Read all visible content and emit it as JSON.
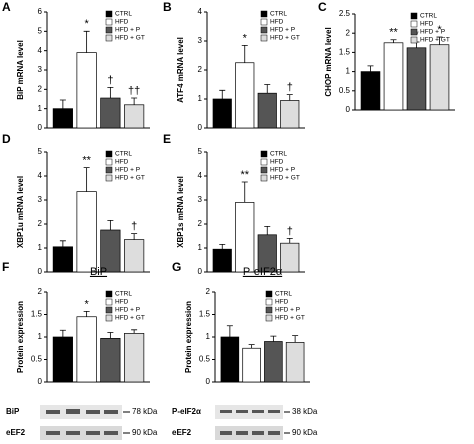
{
  "chart_data": [
    {
      "type": "bar",
      "label": "A",
      "y_label": "BiP mRNA level",
      "categories": [
        "CTRL",
        "HFD",
        "HFD + P",
        "HFD + GT"
      ],
      "colors": [
        "#000000",
        "#ffffff",
        "#555555",
        "#dddddd"
      ],
      "values": [
        1.0,
        3.9,
        1.55,
        1.2
      ],
      "errors": [
        0.45,
        1.1,
        0.55,
        0.35
      ],
      "markers": [
        null,
        "*",
        "†",
        "††"
      ],
      "ylim": [
        0,
        6
      ],
      "yticks": [
        0,
        1,
        2,
        3,
        4,
        5,
        6
      ]
    },
    {
      "type": "bar",
      "label": "B",
      "y_label": "ATF4 mRNA level",
      "categories": [
        "CTRL",
        "HFD",
        "HFD + P",
        "HFD + GT"
      ],
      "colors": [
        "#000000",
        "#ffffff",
        "#555555",
        "#dddddd"
      ],
      "values": [
        1.0,
        2.25,
        1.2,
        0.95
      ],
      "errors": [
        0.3,
        0.6,
        0.3,
        0.2
      ],
      "markers": [
        null,
        "*",
        null,
        "†"
      ],
      "ylim": [
        0,
        4
      ],
      "yticks": [
        0,
        1,
        2,
        3,
        4
      ]
    },
    {
      "type": "bar",
      "label": "C",
      "y_label": "CHOP mRNA level",
      "categories": [
        "CTRL",
        "HFD",
        "HFD + P",
        "HFD + GT"
      ],
      "colors": [
        "#000000",
        "#ffffff",
        "#555555",
        "#dddddd"
      ],
      "values": [
        1.0,
        1.75,
        1.62,
        1.7
      ],
      "errors": [
        0.15,
        0.08,
        0.15,
        0.2
      ],
      "markers": [
        null,
        "**",
        "*",
        "*"
      ],
      "ylim": [
        0,
        2.5
      ],
      "yticks": [
        0,
        0.5,
        1,
        1.5,
        2,
        2.5
      ]
    },
    {
      "type": "bar",
      "label": "D",
      "y_label": "XBP1u mRNA level",
      "categories": [
        "CTRL",
        "HFD",
        "HFD + P",
        "HFD + GT"
      ],
      "colors": [
        "#000000",
        "#ffffff",
        "#555555",
        "#dddddd"
      ],
      "values": [
        1.05,
        3.35,
        1.75,
        1.35
      ],
      "errors": [
        0.25,
        1.0,
        0.4,
        0.25
      ],
      "markers": [
        null,
        "**",
        null,
        "†"
      ],
      "ylim": [
        0,
        5
      ],
      "yticks": [
        0,
        1,
        2,
        3,
        4,
        5
      ]
    },
    {
      "type": "bar",
      "label": "E",
      "y_label": "XBP1s mRNA level",
      "categories": [
        "CTRL",
        "HFD",
        "HFD + P",
        "HFD + GT"
      ],
      "colors": [
        "#000000",
        "#ffffff",
        "#555555",
        "#dddddd"
      ],
      "values": [
        0.95,
        2.9,
        1.55,
        1.2
      ],
      "errors": [
        0.2,
        0.85,
        0.35,
        0.2
      ],
      "markers": [
        null,
        "**",
        null,
        "†"
      ],
      "ylim": [
        0,
        5
      ],
      "yticks": [
        0,
        1,
        2,
        3,
        4,
        5
      ]
    },
    {
      "type": "bar",
      "label": "F",
      "title": "BiP",
      "y_label": "Protein expression",
      "categories": [
        "CTRL",
        "HFD",
        "HFD + P",
        "HFD + GT"
      ],
      "colors": [
        "#000000",
        "#ffffff",
        "#555555",
        "#dddddd"
      ],
      "values": [
        1.0,
        1.45,
        0.97,
        1.08
      ],
      "errors": [
        0.15,
        0.12,
        0.13,
        0.08
      ],
      "markers": [
        null,
        "*",
        null,
        null
      ],
      "ylim": [
        0,
        2
      ],
      "yticks": [
        0,
        0.5,
        1,
        1.5,
        2
      ]
    },
    {
      "type": "bar",
      "label": "G",
      "title": "P-eIF2α",
      "y_label": "Protein expression",
      "categories": [
        "CTRL",
        "HFD",
        "HFD + P",
        "HFD + GT"
      ],
      "colors": [
        "#000000",
        "#ffffff",
        "#555555",
        "#dddddd"
      ],
      "values": [
        1.0,
        0.75,
        0.9,
        0.88
      ],
      "errors": [
        0.25,
        0.08,
        0.12,
        0.15
      ],
      "markers": [
        null,
        null,
        null,
        null
      ],
      "ylim": [
        0,
        2
      ],
      "yticks": [
        0,
        0.5,
        1,
        1.5,
        2
      ]
    }
  ],
  "blots": [
    {
      "protein": "BiP",
      "protein_kda": "78 kDa",
      "control": "eEF2",
      "control_kda": "90 kDa"
    },
    {
      "protein": "P-eIF2α",
      "protein_kda": "38 kDa",
      "control": "eEF2",
      "control_kda": "90 kDa"
    }
  ]
}
